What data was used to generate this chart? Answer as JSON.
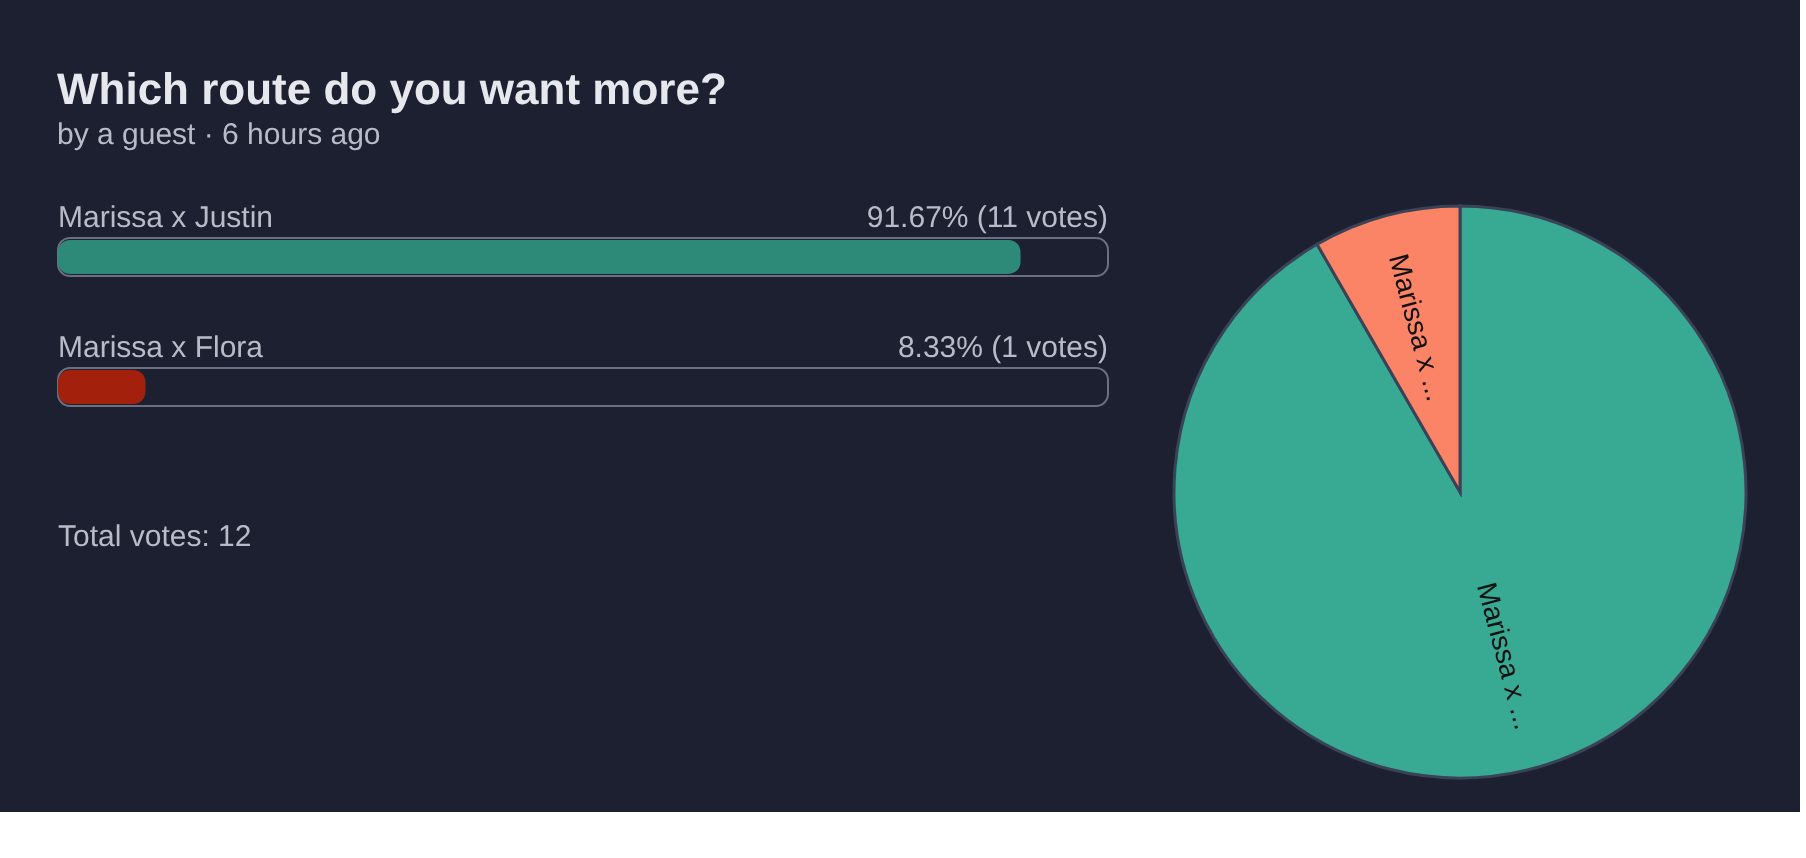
{
  "chart_data": [
    {
      "type": "bar",
      "orientation": "horizontal",
      "title": "Which route do you want more?",
      "subtitle": "by a guest · 6 hours ago",
      "categories": [
        "Marissa x Justin",
        "Marissa x Flora"
      ],
      "values": [
        91.67,
        8.33
      ],
      "colors": [
        "#2d8a78",
        "#a3200c"
      ],
      "value_labels": [
        "91.67% (11 votes)",
        "8.33% (1 votes)"
      ],
      "xlim": [
        0,
        100
      ],
      "tick_labels": "y",
      "annotations": [
        "Total votes: 12"
      ]
    },
    {
      "type": "pie",
      "categories": [
        "Marissa x ...",
        "Marissa x ..."
      ],
      "values": [
        91.67,
        8.33
      ],
      "colors": [
        "#38a993",
        "#fb8466"
      ]
    }
  ]
}
